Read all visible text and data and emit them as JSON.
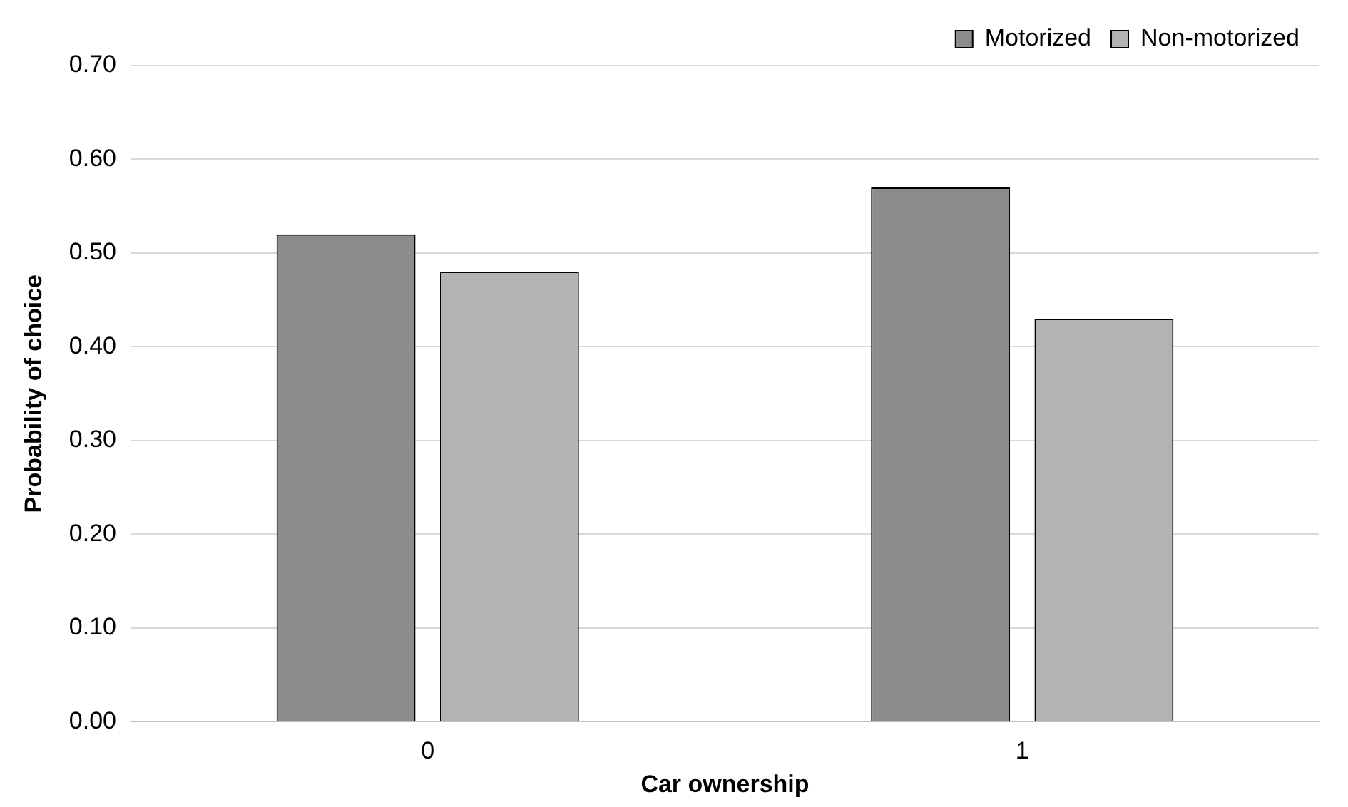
{
  "chart_data": {
    "type": "bar",
    "xlabel": "Car ownership",
    "ylabel": "Probability of choice",
    "categories": [
      "0",
      "1"
    ],
    "series": [
      {
        "name": "Motorized",
        "color": "#8c8c8c",
        "values": [
          0.52,
          0.57
        ]
      },
      {
        "name": "Non-motorized",
        "color": "#b3b3b3",
        "values": [
          0.48,
          0.43
        ]
      }
    ],
    "ylim": [
      0,
      0.7
    ],
    "yticks": [
      {
        "value": 0,
        "label": "0.00"
      },
      {
        "value": 0.1,
        "label": "0.10"
      },
      {
        "value": 0.2,
        "label": "0.20"
      },
      {
        "value": 0.3,
        "label": "0.30"
      },
      {
        "value": 0.4,
        "label": "0.40"
      },
      {
        "value": 0.5,
        "label": "0.50"
      },
      {
        "value": 0.6,
        "label": "0.60"
      },
      {
        "value": 0.7,
        "label": "0.70"
      }
    ],
    "grid": "y",
    "legend": "top right"
  }
}
